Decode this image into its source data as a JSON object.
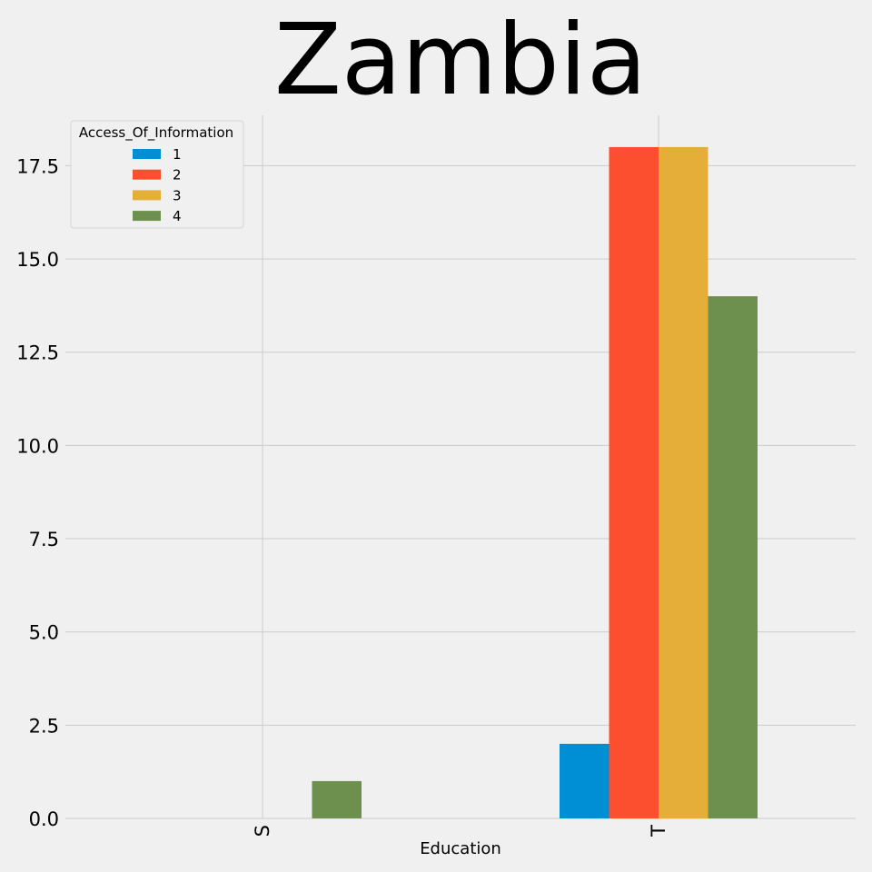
{
  "chart_data": {
    "type": "bar",
    "title": "Zambia",
    "xlabel": "Education",
    "ylabel": "",
    "categories": [
      "S",
      "T"
    ],
    "legend_title": "Access_Of_Information",
    "legend_position": "top-left",
    "series": [
      {
        "name": "1",
        "color": "#008fd5",
        "values": [
          0,
          2
        ]
      },
      {
        "name": "2",
        "color": "#fc4f30",
        "values": [
          0,
          18
        ]
      },
      {
        "name": "3",
        "color": "#e5ae38",
        "values": [
          0,
          18
        ]
      },
      {
        "name": "4",
        "color": "#6d904f",
        "values": [
          1,
          14
        ]
      }
    ],
    "ylim": [
      0,
      18.85
    ],
    "yticks": [
      "0.0",
      "2.5",
      "5.0",
      "7.5",
      "10.0",
      "12.5",
      "15.0",
      "17.5"
    ],
    "grid": true
  }
}
